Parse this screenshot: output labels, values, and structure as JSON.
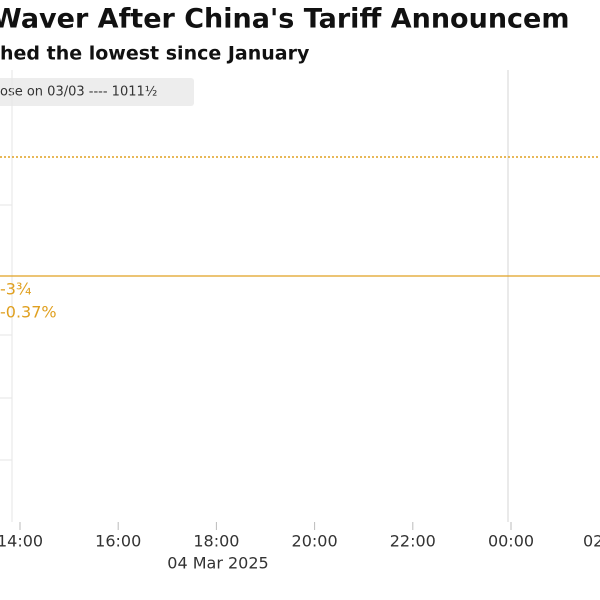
{
  "chart_data": {
    "type": "line",
    "title": "Waver After China's Tariff Announcem",
    "subtitle": "hed the lowest since January",
    "legend_label": "ose on 03/03 ---- 1011½",
    "annotations": [
      "-3¾",
      "-0.37%"
    ],
    "categories": [
      "14:00",
      "16:00",
      "18:00",
      "20:00",
      "22:00",
      "00:00",
      "02"
    ],
    "date_label": "04 Mar 2025",
    "color": "#e0a020"
  }
}
